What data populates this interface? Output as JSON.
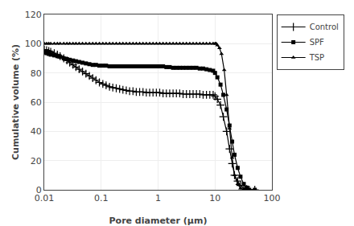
{
  "chart_data": {
    "type": "line",
    "xlabel": "Pore diameter (μm)",
    "ylabel": "Cumulative volume (%)",
    "log": "x",
    "xlim": [
      0.01,
      100
    ],
    "ylim": [
      0,
      120
    ],
    "xticks": [
      0.01,
      0.1,
      1,
      10,
      100
    ],
    "yticks": [
      0,
      20,
      40,
      60,
      80,
      100,
      120
    ],
    "grid": true,
    "legend": "right",
    "series": [
      {
        "name": "Control",
        "color": "#000000",
        "marker": "plus",
        "line_style": "solid",
        "x": [
          0.01,
          0.011,
          0.012,
          0.013,
          0.015,
          0.017,
          0.019,
          0.022,
          0.025,
          0.028,
          0.032,
          0.036,
          0.041,
          0.047,
          0.054,
          0.062,
          0.071,
          0.081,
          0.093,
          0.107,
          0.122,
          0.14,
          0.16,
          0.184,
          0.211,
          0.241,
          0.276,
          0.316,
          0.362,
          0.414,
          0.474,
          0.543,
          0.621,
          0.711,
          0.814,
          0.932,
          1.067,
          1.221,
          1.398,
          1.6,
          1.832,
          2.097,
          2.4,
          2.748,
          3.146,
          3.6,
          4.12,
          4.715,
          5.398,
          6.179,
          7.075,
          8.1,
          9.27,
          10.0,
          11.0,
          12.5,
          14.0,
          16.0,
          18.0,
          20.0,
          22.0,
          25.0,
          28.0,
          32.0,
          36.0,
          40.0,
          50.0
        ],
        "values": [
          96,
          95.5,
          95,
          94.5,
          93.5,
          92.5,
          91.5,
          90,
          88.5,
          87,
          85.5,
          84,
          82.5,
          81,
          79.5,
          78,
          76.5,
          75,
          73.5,
          72.5,
          71.5,
          70.5,
          70,
          69.5,
          69,
          68.5,
          68,
          67.5,
          67.5,
          67,
          67,
          67,
          66.5,
          66.5,
          66.5,
          66.5,
          66.5,
          66,
          66,
          66,
          66,
          66,
          66,
          65.5,
          65.5,
          65.5,
          65.5,
          65.5,
          65.5,
          65,
          65,
          65,
          65,
          64,
          62,
          58,
          50,
          40,
          28,
          18,
          10,
          6,
          3,
          1,
          0.5,
          0,
          0
        ]
      },
      {
        "name": "SPF",
        "color": "#000000",
        "marker": "square",
        "line_style": "solid",
        "x": [
          0.01,
          0.011,
          0.012,
          0.013,
          0.015,
          0.017,
          0.019,
          0.022,
          0.025,
          0.028,
          0.032,
          0.036,
          0.041,
          0.047,
          0.054,
          0.062,
          0.071,
          0.081,
          0.093,
          0.107,
          0.122,
          0.14,
          0.16,
          0.184,
          0.211,
          0.241,
          0.276,
          0.316,
          0.362,
          0.414,
          0.474,
          0.543,
          0.621,
          0.711,
          0.814,
          0.932,
          1.067,
          1.221,
          1.398,
          1.6,
          1.832,
          2.097,
          2.4,
          2.748,
          3.146,
          3.6,
          4.12,
          4.715,
          5.398,
          6.179,
          7.075,
          8.1,
          9.27,
          10.0,
          11.0,
          12.5,
          14.0,
          16.0,
          18.0,
          20.0,
          22.0,
          25.0,
          28.0,
          32.0,
          36.0,
          40.0,
          50.0
        ],
        "values": [
          94,
          93.5,
          93,
          92.5,
          92,
          91.5,
          91,
          90,
          89.5,
          89,
          88.5,
          88,
          87.5,
          87,
          86.5,
          86,
          85.5,
          85.5,
          85,
          85,
          85,
          84.5,
          84.5,
          84.5,
          84.5,
          84.5,
          84.5,
          84.5,
          84.5,
          84.5,
          84.5,
          84.5,
          84.5,
          84.5,
          84.5,
          84.5,
          84.5,
          84.5,
          84,
          84,
          83.5,
          83.5,
          83.5,
          83.5,
          83.5,
          83.5,
          83.5,
          83.5,
          83,
          83,
          82.5,
          82,
          81.5,
          80,
          77,
          72,
          65,
          55,
          44,
          33,
          24,
          15,
          9,
          4,
          1.5,
          0,
          0
        ]
      },
      {
        "name": "TSP",
        "color": "#000000",
        "marker": "triangle",
        "line_style": "solid",
        "x": [
          0.01,
          0.011,
          0.012,
          0.013,
          0.015,
          0.017,
          0.019,
          0.022,
          0.025,
          0.028,
          0.032,
          0.036,
          0.041,
          0.047,
          0.054,
          0.062,
          0.071,
          0.081,
          0.093,
          0.107,
          0.122,
          0.14,
          0.16,
          0.184,
          0.211,
          0.241,
          0.276,
          0.316,
          0.362,
          0.414,
          0.474,
          0.543,
          0.621,
          0.711,
          0.814,
          0.932,
          1.067,
          1.221,
          1.398,
          1.6,
          1.832,
          2.097,
          2.4,
          2.748,
          3.146,
          3.6,
          4.12,
          4.715,
          5.398,
          6.179,
          7.075,
          8.1,
          9.27,
          10.0,
          10.5,
          11.0,
          12.0,
          13.0,
          14.5,
          16.0,
          18.0,
          20.0,
          22.0,
          25.0,
          28.0,
          32.0,
          40.0
        ],
        "values": [
          100,
          100,
          100,
          100,
          100,
          100,
          100,
          100,
          100,
          100,
          100,
          100,
          100,
          100,
          100,
          100,
          100,
          100,
          100,
          100,
          100,
          100,
          100,
          100,
          100,
          100,
          100,
          100,
          100,
          100,
          100,
          100,
          100,
          100,
          100,
          100,
          100,
          100,
          100,
          100,
          100,
          100,
          100,
          100,
          100,
          100,
          100,
          100,
          100,
          100,
          100,
          100,
          100,
          100,
          100,
          99,
          97,
          93,
          82,
          65,
          42,
          22,
          10,
          4,
          1,
          0,
          0
        ]
      }
    ]
  }
}
